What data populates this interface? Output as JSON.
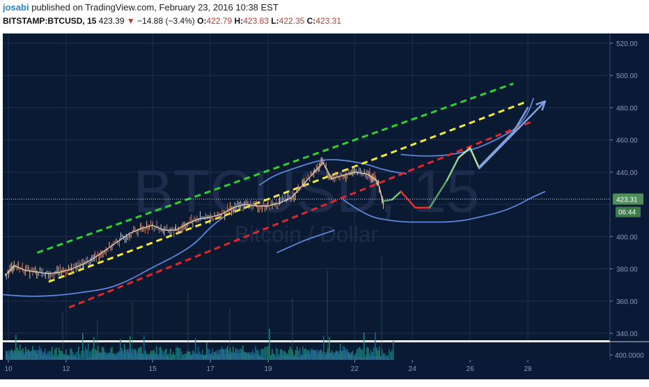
{
  "header": {
    "user": "josabi",
    "published_text": "published on TradingView.com, February 23, 2016 10:38 EST"
  },
  "quote": {
    "symbol": "BITSTAMP:BTCUSD, 15",
    "last": "423.39",
    "arrow": "▼",
    "change": "−14.88 (−3.4%)",
    "open_label": "O:",
    "open": "422.79",
    "high_label": "H:",
    "high": "423.83",
    "low_label": "L:",
    "low": "422.35",
    "close_label": "C:",
    "close": "423.31"
  },
  "watermark": {
    "symbol": "BTCUSD, 15",
    "description": "Bitcoin / Dollar"
  },
  "price_axis": {
    "ticks": [
      "520.00",
      "500.00",
      "480.00",
      "460.00",
      "440.00",
      "400.00",
      "380.00",
      "360.00",
      "340.00"
    ],
    "current_price": "423.31",
    "countdown": "06:44"
  },
  "volume_axis": {
    "tick": "400.0000"
  },
  "time_axis": {
    "ticks": [
      "10",
      "12",
      "15",
      "17",
      "19",
      "22",
      "24",
      "26",
      "28"
    ]
  },
  "colors": {
    "background": "#0b1a33",
    "grid": "#1f2f4d",
    "green_line": "#2fd12f",
    "yellow_line": "#f5e83a",
    "red_line": "#e3262b",
    "bollinger": "#5b86d9",
    "price_badge": "#4f8f5c"
  },
  "chart_data": {
    "type": "line",
    "title": "BTCUSD, 15",
    "subtitle": "Bitcoin / Dollar",
    "xlabel": "",
    "ylabel": "",
    "ylim": [
      330,
      525
    ],
    "x_ticks": [
      "10",
      "12",
      "15",
      "17",
      "19",
      "22",
      "24",
      "26",
      "28"
    ],
    "series": [
      {
        "kind": "price",
        "x": [
          9.9,
          10.2,
          10.6,
          11.0,
          11.4,
          11.8,
          12.2,
          12.6,
          13.0,
          13.4,
          13.8,
          14.2,
          14.6,
          15.0,
          15.4,
          15.8,
          16.2,
          16.6,
          17.0,
          17.4,
          17.8,
          18.2,
          18.6,
          19.0,
          19.4,
          19.8,
          20.2,
          20.6,
          20.9,
          21.2,
          21.6,
          22.0,
          22.4,
          22.6,
          22.8,
          23.0
        ],
        "y": [
          376,
          382,
          379,
          378,
          377,
          378,
          380,
          383,
          387,
          392,
          397,
          402,
          405,
          407,
          404,
          404,
          408,
          411,
          412,
          414,
          418,
          420,
          419,
          419,
          421,
          424,
          432,
          440,
          446,
          436,
          438,
          440,
          439,
          437,
          434,
          420
        ]
      },
      {
        "kind": "projection",
        "x": [
          23.0,
          23.3,
          23.6,
          24.1,
          24.6,
          25.2,
          25.6,
          26.0,
          26.3,
          26.9,
          27.5,
          28.0
        ],
        "y": [
          422,
          423,
          428,
          418,
          418,
          435,
          449,
          455,
          443,
          454,
          465,
          480
        ]
      },
      {
        "kind": "bollinger-lower-early",
        "x": [
          9.8,
          10.5,
          11.2,
          12.0,
          12.8,
          13.5,
          14.2,
          15.0,
          15.8,
          16.5,
          17.0,
          17.6
        ],
        "y": [
          364,
          363,
          363,
          364,
          366,
          368,
          373,
          381,
          388,
          396,
          406,
          414
        ]
      },
      {
        "kind": "bollinger-upper",
        "x": [
          18.7,
          19.2,
          20.0,
          20.7,
          21.2,
          21.8,
          22.4,
          22.9,
          23.4,
          23.8
        ],
        "y": [
          432,
          438,
          443,
          447,
          448,
          447,
          445,
          442,
          440,
          439
        ]
      },
      {
        "kind": "bollinger-lower",
        "x": [
          21.6,
          22.0,
          22.6,
          23.2,
          23.8,
          24.5,
          25.2,
          25.8,
          26.3,
          27.0,
          27.6,
          28.1,
          28.6
        ],
        "y": [
          423,
          418,
          412,
          410,
          409,
          409,
          409,
          410,
          412,
          415,
          419,
          424,
          428
        ]
      },
      {
        "kind": "bollinger-upper-right",
        "x": [
          23.6,
          24.2,
          24.8,
          25.4,
          25.9,
          26.4,
          27.0,
          27.6,
          28.0,
          28.2
        ],
        "y": [
          451,
          450,
          450,
          451,
          453,
          456,
          461,
          467,
          476,
          486
        ]
      },
      {
        "kind": "bollinger-middle-fragment",
        "x": [
          19.3,
          19.8,
          20.3,
          20.8,
          21.3
        ],
        "y": [
          390,
          394,
          398,
          401,
          404
        ]
      }
    ],
    "trendlines": [
      {
        "name": "green",
        "x": [
          11.0,
          27.5
        ],
        "y": [
          390,
          495
        ]
      },
      {
        "name": "yellow",
        "x": [
          11.4,
          28.0
        ],
        "y": [
          372,
          484
        ]
      },
      {
        "name": "red",
        "x": [
          12.1,
          28.1
        ],
        "y": [
          356,
          471
        ]
      }
    ],
    "arrow": {
      "x": [
        26.3,
        28.6
      ],
      "y": [
        442,
        484
      ]
    },
    "current_price": 423.31,
    "grid": true,
    "legend": "none"
  }
}
